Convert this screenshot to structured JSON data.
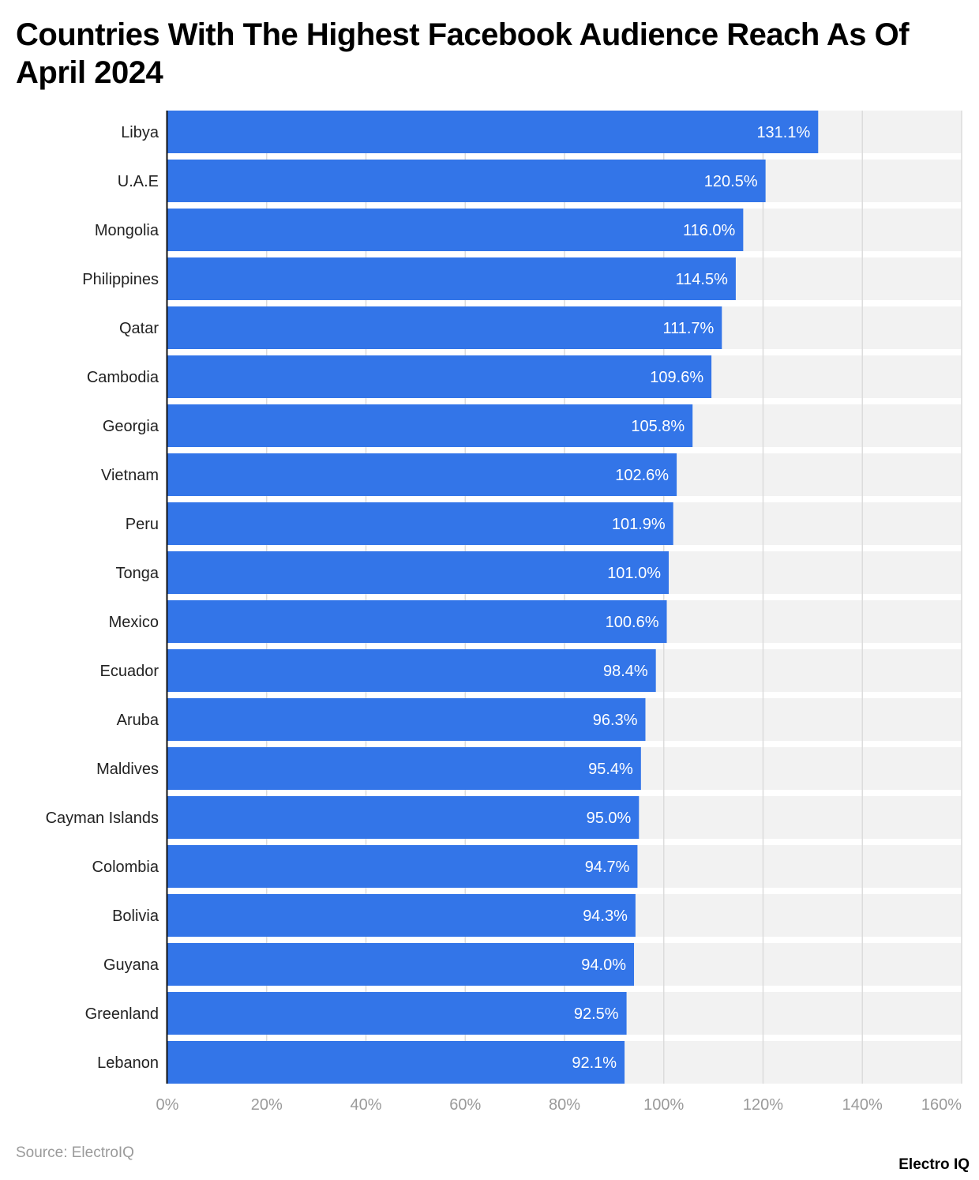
{
  "chart_data": {
    "type": "bar",
    "orientation": "horizontal",
    "title": "Countries With The Highest Facebook Audience Reach As Of April 2024",
    "categories": [
      "Libya",
      "U.A.E",
      "Mongolia",
      "Philippines",
      "Qatar",
      "Cambodia",
      "Georgia",
      "Vietnam",
      "Peru",
      "Tonga",
      "Mexico",
      "Ecuador",
      "Aruba",
      "Maldives",
      "Cayman Islands",
      "Colombia",
      "Bolivia",
      "Guyana",
      "Greenland",
      "Lebanon"
    ],
    "values": [
      131.1,
      120.5,
      116.0,
      114.5,
      111.7,
      109.6,
      105.8,
      102.6,
      101.9,
      101.0,
      100.6,
      98.4,
      96.3,
      95.4,
      95.0,
      94.7,
      94.3,
      94.0,
      92.5,
      92.1
    ],
    "value_labels": [
      "131.1%",
      "120.5%",
      "116.0%",
      "114.5%",
      "111.7%",
      "109.6%",
      "105.8%",
      "102.6%",
      "101.9%",
      "101.0%",
      "100.6%",
      "98.4%",
      "96.3%",
      "95.4%",
      "95.0%",
      "94.7%",
      "94.3%",
      "94.0%",
      "92.5%",
      "92.1%"
    ],
    "xlim": [
      0,
      160
    ],
    "xticks": [
      0,
      20,
      40,
      60,
      80,
      100,
      120,
      140,
      160
    ],
    "xtick_labels": [
      "0%",
      "20%",
      "40%",
      "60%",
      "80%",
      "100%",
      "120%",
      "140%",
      "160%"
    ],
    "grid": true,
    "bar_color": "#3375e8",
    "xlabel": "",
    "ylabel": ""
  },
  "footer": {
    "source": "Source: ElectroIQ",
    "logo": "Electro IQ"
  }
}
